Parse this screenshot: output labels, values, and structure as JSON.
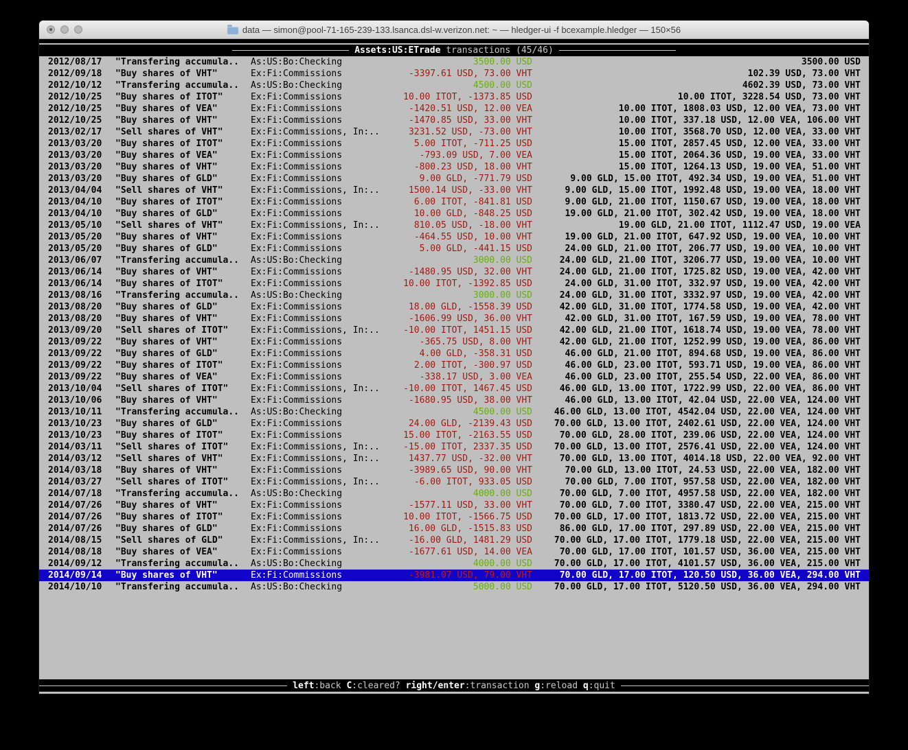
{
  "window": {
    "title": "data — simon@pool-71-165-239-133.lsanca.dsl-w.verizon.net: ~ — hledger-ui -f bcexample.hledger — 150×56",
    "folder_icon": "folder-icon",
    "traffic_lights": [
      "close",
      "minimize",
      "zoom"
    ]
  },
  "screen": {
    "account": "Assets:US:ETrade",
    "label": " transactions ",
    "position": "(45/46)"
  },
  "register": {
    "selected_index": 44,
    "rows": [
      {
        "date": "2012/08/17",
        "description": "\"Transfering accumula..",
        "accounts": "As:US:Bo:Checking",
        "amount": "3500.00 USD",
        "amount_color": "positive",
        "balance": "3500.00 USD"
      },
      {
        "date": "2012/09/18",
        "description": "\"Buy shares of VHT\"",
        "accounts": "Ex:Fi:Commissions",
        "amount": "-3397.61 USD, 73.00 VHT",
        "amount_color": "negative",
        "balance": "102.39 USD, 73.00 VHT"
      },
      {
        "date": "2012/10/12",
        "description": "\"Transfering accumula..",
        "accounts": "As:US:Bo:Checking",
        "amount": "4500.00 USD",
        "amount_color": "positive",
        "balance": "4602.39 USD, 73.00 VHT"
      },
      {
        "date": "2012/10/25",
        "description": "\"Buy shares of ITOT\"",
        "accounts": "Ex:Fi:Commissions",
        "amount": "10.00 ITOT, -1373.85 USD",
        "amount_color": "negative",
        "balance": "10.00 ITOT, 3228.54 USD, 73.00 VHT"
      },
      {
        "date": "2012/10/25",
        "description": "\"Buy shares of VEA\"",
        "accounts": "Ex:Fi:Commissions",
        "amount": "-1420.51 USD, 12.00 VEA",
        "amount_color": "negative",
        "balance": "10.00 ITOT, 1808.03 USD, 12.00 VEA, 73.00 VHT"
      },
      {
        "date": "2012/10/25",
        "description": "\"Buy shares of VHT\"",
        "accounts": "Ex:Fi:Commissions",
        "amount": "-1470.85 USD, 33.00 VHT",
        "amount_color": "negative",
        "balance": "10.00 ITOT, 337.18 USD, 12.00 VEA, 106.00 VHT"
      },
      {
        "date": "2013/02/17",
        "description": "\"Sell shares of VHT\"",
        "accounts": "Ex:Fi:Commissions, In:..",
        "amount": "3231.52 USD, -73.00 VHT",
        "amount_color": "negative",
        "balance": "10.00 ITOT, 3568.70 USD, 12.00 VEA, 33.00 VHT"
      },
      {
        "date": "2013/03/20",
        "description": "\"Buy shares of ITOT\"",
        "accounts": "Ex:Fi:Commissions",
        "amount": "5.00 ITOT, -711.25 USD",
        "amount_color": "negative",
        "balance": "15.00 ITOT, 2857.45 USD, 12.00 VEA, 33.00 VHT"
      },
      {
        "date": "2013/03/20",
        "description": "\"Buy shares of VEA\"",
        "accounts": "Ex:Fi:Commissions",
        "amount": "-793.09 USD, 7.00 VEA",
        "amount_color": "negative",
        "balance": "15.00 ITOT, 2064.36 USD, 19.00 VEA, 33.00 VHT"
      },
      {
        "date": "2013/03/20",
        "description": "\"Buy shares of VHT\"",
        "accounts": "Ex:Fi:Commissions",
        "amount": "-800.23 USD, 18.00 VHT",
        "amount_color": "negative",
        "balance": "15.00 ITOT, 1264.13 USD, 19.00 VEA, 51.00 VHT"
      },
      {
        "date": "2013/03/20",
        "description": "\"Buy shares of GLD\"",
        "accounts": "Ex:Fi:Commissions",
        "amount": "9.00 GLD, -771.79 USD",
        "amount_color": "negative",
        "balance": "9.00 GLD, 15.00 ITOT, 492.34 USD, 19.00 VEA, 51.00 VHT"
      },
      {
        "date": "2013/04/04",
        "description": "\"Sell shares of VHT\"",
        "accounts": "Ex:Fi:Commissions, In:..",
        "amount": "1500.14 USD, -33.00 VHT",
        "amount_color": "negative",
        "balance": "9.00 GLD, 15.00 ITOT, 1992.48 USD, 19.00 VEA, 18.00 VHT"
      },
      {
        "date": "2013/04/10",
        "description": "\"Buy shares of ITOT\"",
        "accounts": "Ex:Fi:Commissions",
        "amount": "6.00 ITOT, -841.81 USD",
        "amount_color": "negative",
        "balance": "9.00 GLD, 21.00 ITOT, 1150.67 USD, 19.00 VEA, 18.00 VHT"
      },
      {
        "date": "2013/04/10",
        "description": "\"Buy shares of GLD\"",
        "accounts": "Ex:Fi:Commissions",
        "amount": "10.00 GLD, -848.25 USD",
        "amount_color": "negative",
        "balance": "19.00 GLD, 21.00 ITOT, 302.42 USD, 19.00 VEA, 18.00 VHT"
      },
      {
        "date": "2013/05/10",
        "description": "\"Sell shares of VHT\"",
        "accounts": "Ex:Fi:Commissions, In:..",
        "amount": "810.05 USD, -18.00 VHT",
        "amount_color": "negative",
        "balance": "19.00 GLD, 21.00 ITOT, 1112.47 USD, 19.00 VEA"
      },
      {
        "date": "2013/05/20",
        "description": "\"Buy shares of VHT\"",
        "accounts": "Ex:Fi:Commissions",
        "amount": "-464.55 USD, 10.00 VHT",
        "amount_color": "negative",
        "balance": "19.00 GLD, 21.00 ITOT, 647.92 USD, 19.00 VEA, 10.00 VHT"
      },
      {
        "date": "2013/05/20",
        "description": "\"Buy shares of GLD\"",
        "accounts": "Ex:Fi:Commissions",
        "amount": "5.00 GLD, -441.15 USD",
        "amount_color": "negative",
        "balance": "24.00 GLD, 21.00 ITOT, 206.77 USD, 19.00 VEA, 10.00 VHT"
      },
      {
        "date": "2013/06/07",
        "description": "\"Transfering accumula..",
        "accounts": "As:US:Bo:Checking",
        "amount": "3000.00 USD",
        "amount_color": "positive",
        "balance": "24.00 GLD, 21.00 ITOT, 3206.77 USD, 19.00 VEA, 10.00 VHT"
      },
      {
        "date": "2013/06/14",
        "description": "\"Buy shares of VHT\"",
        "accounts": "Ex:Fi:Commissions",
        "amount": "-1480.95 USD, 32.00 VHT",
        "amount_color": "negative",
        "balance": "24.00 GLD, 21.00 ITOT, 1725.82 USD, 19.00 VEA, 42.00 VHT"
      },
      {
        "date": "2013/06/14",
        "description": "\"Buy shares of ITOT\"",
        "accounts": "Ex:Fi:Commissions",
        "amount": "10.00 ITOT, -1392.85 USD",
        "amount_color": "negative",
        "balance": "24.00 GLD, 31.00 ITOT, 332.97 USD, 19.00 VEA, 42.00 VHT"
      },
      {
        "date": "2013/08/16",
        "description": "\"Transfering accumula..",
        "accounts": "As:US:Bo:Checking",
        "amount": "3000.00 USD",
        "amount_color": "positive",
        "balance": "24.00 GLD, 31.00 ITOT, 3332.97 USD, 19.00 VEA, 42.00 VHT"
      },
      {
        "date": "2013/08/20",
        "description": "\"Buy shares of GLD\"",
        "accounts": "Ex:Fi:Commissions",
        "amount": "18.00 GLD, -1558.39 USD",
        "amount_color": "negative",
        "balance": "42.00 GLD, 31.00 ITOT, 1774.58 USD, 19.00 VEA, 42.00 VHT"
      },
      {
        "date": "2013/08/20",
        "description": "\"Buy shares of VHT\"",
        "accounts": "Ex:Fi:Commissions",
        "amount": "-1606.99 USD, 36.00 VHT",
        "amount_color": "negative",
        "balance": "42.00 GLD, 31.00 ITOT, 167.59 USD, 19.00 VEA, 78.00 VHT"
      },
      {
        "date": "2013/09/20",
        "description": "\"Sell shares of ITOT\"",
        "accounts": "Ex:Fi:Commissions, In:..",
        "amount": "-10.00 ITOT, 1451.15 USD",
        "amount_color": "negative",
        "balance": "42.00 GLD, 21.00 ITOT, 1618.74 USD, 19.00 VEA, 78.00 VHT"
      },
      {
        "date": "2013/09/22",
        "description": "\"Buy shares of VHT\"",
        "accounts": "Ex:Fi:Commissions",
        "amount": "-365.75 USD, 8.00 VHT",
        "amount_color": "negative",
        "balance": "42.00 GLD, 21.00 ITOT, 1252.99 USD, 19.00 VEA, 86.00 VHT"
      },
      {
        "date": "2013/09/22",
        "description": "\"Buy shares of GLD\"",
        "accounts": "Ex:Fi:Commissions",
        "amount": "4.00 GLD, -358.31 USD",
        "amount_color": "negative",
        "balance": "46.00 GLD, 21.00 ITOT, 894.68 USD, 19.00 VEA, 86.00 VHT"
      },
      {
        "date": "2013/09/22",
        "description": "\"Buy shares of ITOT\"",
        "accounts": "Ex:Fi:Commissions",
        "amount": "2.00 ITOT, -300.97 USD",
        "amount_color": "negative",
        "balance": "46.00 GLD, 23.00 ITOT, 593.71 USD, 19.00 VEA, 86.00 VHT"
      },
      {
        "date": "2013/09/22",
        "description": "\"Buy shares of VEA\"",
        "accounts": "Ex:Fi:Commissions",
        "amount": "-338.17 USD, 3.00 VEA",
        "amount_color": "negative",
        "balance": "46.00 GLD, 23.00 ITOT, 255.54 USD, 22.00 VEA, 86.00 VHT"
      },
      {
        "date": "2013/10/04",
        "description": "\"Sell shares of ITOT\"",
        "accounts": "Ex:Fi:Commissions, In:..",
        "amount": "-10.00 ITOT, 1467.45 USD",
        "amount_color": "negative",
        "balance": "46.00 GLD, 13.00 ITOT, 1722.99 USD, 22.00 VEA, 86.00 VHT"
      },
      {
        "date": "2013/10/06",
        "description": "\"Buy shares of VHT\"",
        "accounts": "Ex:Fi:Commissions",
        "amount": "-1680.95 USD, 38.00 VHT",
        "amount_color": "negative",
        "balance": "46.00 GLD, 13.00 ITOT, 42.04 USD, 22.00 VEA, 124.00 VHT"
      },
      {
        "date": "2013/10/11",
        "description": "\"Transfering accumula..",
        "accounts": "As:US:Bo:Checking",
        "amount": "4500.00 USD",
        "amount_color": "positive",
        "balance": "46.00 GLD, 13.00 ITOT, 4542.04 USD, 22.00 VEA, 124.00 VHT"
      },
      {
        "date": "2013/10/23",
        "description": "\"Buy shares of GLD\"",
        "accounts": "Ex:Fi:Commissions",
        "amount": "24.00 GLD, -2139.43 USD",
        "amount_color": "negative",
        "balance": "70.00 GLD, 13.00 ITOT, 2402.61 USD, 22.00 VEA, 124.00 VHT"
      },
      {
        "date": "2013/10/23",
        "description": "\"Buy shares of ITOT\"",
        "accounts": "Ex:Fi:Commissions",
        "amount": "15.00 ITOT, -2163.55 USD",
        "amount_color": "negative",
        "balance": "70.00 GLD, 28.00 ITOT, 239.06 USD, 22.00 VEA, 124.00 VHT"
      },
      {
        "date": "2014/03/11",
        "description": "\"Sell shares of ITOT\"",
        "accounts": "Ex:Fi:Commissions, In:..",
        "amount": "-15.00 ITOT, 2337.35 USD",
        "amount_color": "negative",
        "balance": "70.00 GLD, 13.00 ITOT, 2576.41 USD, 22.00 VEA, 124.00 VHT"
      },
      {
        "date": "2014/03/12",
        "description": "\"Sell shares of VHT\"",
        "accounts": "Ex:Fi:Commissions, In:..",
        "amount": "1437.77 USD, -32.00 VHT",
        "amount_color": "negative",
        "balance": "70.00 GLD, 13.00 ITOT, 4014.18 USD, 22.00 VEA, 92.00 VHT"
      },
      {
        "date": "2014/03/18",
        "description": "\"Buy shares of VHT\"",
        "accounts": "Ex:Fi:Commissions",
        "amount": "-3989.65 USD, 90.00 VHT",
        "amount_color": "negative",
        "balance": "70.00 GLD, 13.00 ITOT, 24.53 USD, 22.00 VEA, 182.00 VHT"
      },
      {
        "date": "2014/03/27",
        "description": "\"Sell shares of ITOT\"",
        "accounts": "Ex:Fi:Commissions, In:..",
        "amount": "-6.00 ITOT, 933.05 USD",
        "amount_color": "negative",
        "balance": "70.00 GLD, 7.00 ITOT, 957.58 USD, 22.00 VEA, 182.00 VHT"
      },
      {
        "date": "2014/07/18",
        "description": "\"Transfering accumula..",
        "accounts": "As:US:Bo:Checking",
        "amount": "4000.00 USD",
        "amount_color": "positive",
        "balance": "70.00 GLD, 7.00 ITOT, 4957.58 USD, 22.00 VEA, 182.00 VHT"
      },
      {
        "date": "2014/07/26",
        "description": "\"Buy shares of VHT\"",
        "accounts": "Ex:Fi:Commissions",
        "amount": "-1577.11 USD, 33.00 VHT",
        "amount_color": "negative",
        "balance": "70.00 GLD, 7.00 ITOT, 3380.47 USD, 22.00 VEA, 215.00 VHT"
      },
      {
        "date": "2014/07/26",
        "description": "\"Buy shares of ITOT\"",
        "accounts": "Ex:Fi:Commissions",
        "amount": "10.00 ITOT, -1566.75 USD",
        "amount_color": "negative",
        "balance": "70.00 GLD, 17.00 ITOT, 1813.72 USD, 22.00 VEA, 215.00 VHT"
      },
      {
        "date": "2014/07/26",
        "description": "\"Buy shares of GLD\"",
        "accounts": "Ex:Fi:Commissions",
        "amount": "16.00 GLD, -1515.83 USD",
        "amount_color": "negative",
        "balance": "86.00 GLD, 17.00 ITOT, 297.89 USD, 22.00 VEA, 215.00 VHT"
      },
      {
        "date": "2014/08/15",
        "description": "\"Sell shares of GLD\"",
        "accounts": "Ex:Fi:Commissions, In:..",
        "amount": "-16.00 GLD, 1481.29 USD",
        "amount_color": "negative",
        "balance": "70.00 GLD, 17.00 ITOT, 1779.18 USD, 22.00 VEA, 215.00 VHT"
      },
      {
        "date": "2014/08/18",
        "description": "\"Buy shares of VEA\"",
        "accounts": "Ex:Fi:Commissions",
        "amount": "-1677.61 USD, 14.00 VEA",
        "amount_color": "negative",
        "balance": "70.00 GLD, 17.00 ITOT, 101.57 USD, 36.00 VEA, 215.00 VHT"
      },
      {
        "date": "2014/09/12",
        "description": "\"Transfering accumula..",
        "accounts": "As:US:Bo:Checking",
        "amount": "4000.00 USD",
        "amount_color": "positive",
        "balance": "70.00 GLD, 17.00 ITOT, 4101.57 USD, 36.00 VEA, 215.00 VHT"
      },
      {
        "date": "2014/09/14",
        "description": "\"Buy shares of VHT\"",
        "accounts": "Ex:Fi:Commissions",
        "amount": "-3981.07 USD, 79.00 VHT",
        "amount_color": "negative",
        "balance": "70.00 GLD, 17.00 ITOT, 120.50 USD, 36.00 VEA, 294.00 VHT"
      },
      {
        "date": "2014/10/10",
        "description": "\"Transfering accumula..",
        "accounts": "As:US:Bo:Checking",
        "amount": "5000.00 USD",
        "amount_color": "positive",
        "balance": "70.00 GLD, 17.00 ITOT, 5120.50 USD, 36.00 VEA, 294.00 VHT"
      }
    ]
  },
  "statusbar": {
    "keys": [
      {
        "key": "left",
        "desc": "back"
      },
      {
        "key": "C",
        "desc": "cleared?"
      },
      {
        "key": "right/enter",
        "desc": "transaction"
      },
      {
        "key": "g",
        "desc": "reload"
      },
      {
        "key": "q",
        "desc": "quit"
      }
    ]
  },
  "colors": {
    "terminal_bg": "#bfbfbf",
    "bar_bg": "#000000",
    "bar_fg": "#c9c9c9",
    "negative": "#9e1a10",
    "positive": "#69ad11",
    "selection_bg": "#1203c8"
  }
}
